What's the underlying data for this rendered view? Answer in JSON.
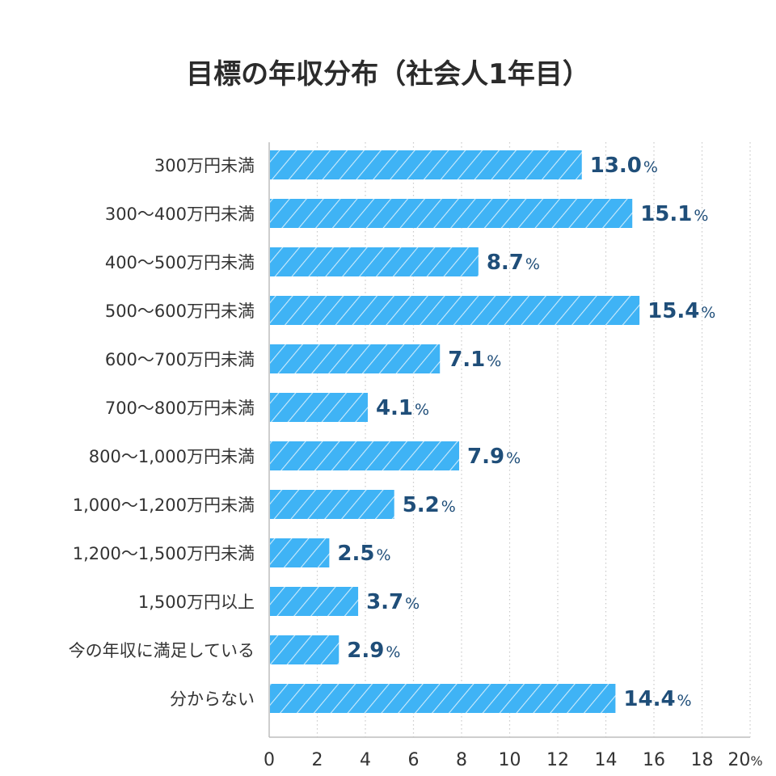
{
  "chart_data": {
    "type": "bar",
    "orientation": "horizontal",
    "title": "目標の年収分布（社会人1年目）",
    "categories": [
      "300万円未満",
      "300〜400万円未満",
      "400〜500万円未満",
      "500〜600万円未満",
      "600〜700万円未満",
      "700〜800万円未満",
      "800〜1,000万円未満",
      "1,000〜1,200万円未満",
      "1,200〜1,500万円未満",
      "1,500万円以上",
      "今の年収に満足している",
      "分からない"
    ],
    "values": [
      13.0,
      15.1,
      8.7,
      15.4,
      7.1,
      4.1,
      7.9,
      5.2,
      2.5,
      3.7,
      2.9,
      14.4
    ],
    "value_labels": [
      "13.0",
      "15.1",
      "8.7",
      "15.4",
      "7.1",
      "4.1",
      "7.9",
      "5.2",
      "2.5",
      "3.7",
      "2.9",
      "14.4"
    ],
    "value_unit": "%",
    "xlim": [
      0,
      20
    ],
    "xticks": [
      "0",
      "2",
      "4",
      "6",
      "8",
      "10",
      "12",
      "14",
      "16",
      "18",
      "20"
    ],
    "xtick_unit": "%",
    "grid": "vertical dotted",
    "bar_color": "#3fb3f5",
    "label_color": "#1f4e79"
  }
}
